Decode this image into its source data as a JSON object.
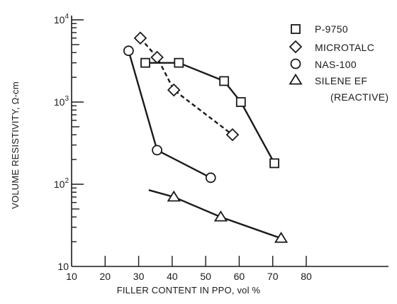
{
  "chart_data": {
    "type": "line",
    "xlabel": "FILLER CONTENT IN PPO, vol %",
    "ylabel": "VOLUME RESISTIVITY, Ω-cm",
    "x_ticks": [
      10,
      20,
      30,
      40,
      50,
      60,
      70,
      80
    ],
    "y_ticks": [
      {
        "value": 10,
        "base": "10",
        "exp": ""
      },
      {
        "value": 100,
        "base": "10",
        "exp": "2"
      },
      {
        "value": 1000,
        "base": "10",
        "exp": "3"
      },
      {
        "value": 10000,
        "base": "10",
        "exp": "4"
      }
    ],
    "xlim": [
      10,
      80
    ],
    "ylim": [
      10,
      10000
    ],
    "y_scale": "log",
    "grid": false,
    "legend_position": "top-right",
    "series": [
      {
        "name": "P-9750",
        "marker": "square",
        "line": "solid",
        "points": [
          [
            32,
            3000
          ],
          [
            42,
            3000
          ],
          [
            55.5,
            1800
          ],
          [
            60.5,
            1000
          ],
          [
            70.5,
            180
          ]
        ]
      },
      {
        "name": "MICROTALC",
        "marker": "diamond",
        "line": "dashed",
        "points": [
          [
            30.5,
            6000
          ],
          [
            35.5,
            3500
          ],
          [
            40.5,
            1400
          ],
          [
            58,
            400
          ]
        ]
      },
      {
        "name": "NAS-100",
        "marker": "circle",
        "line": "solid",
        "points": [
          [
            27,
            4200
          ],
          [
            35.5,
            260
          ],
          [
            51.5,
            120
          ]
        ]
      },
      {
        "name": "SILENE EF",
        "name_line2": "(REACTIVE)",
        "marker": "triangle",
        "line": "solid",
        "line_start": [
          33,
          85
        ],
        "points": [
          [
            40.5,
            70
          ],
          [
            54.5,
            40
          ],
          [
            72.5,
            22
          ]
        ]
      }
    ]
  }
}
